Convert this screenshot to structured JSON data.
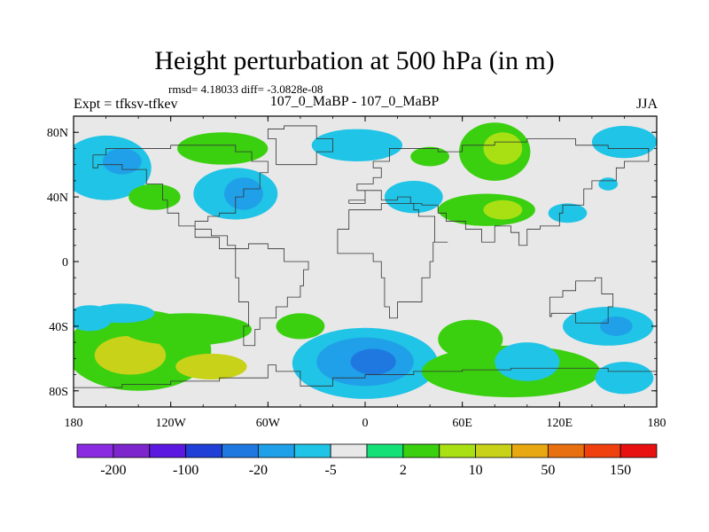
{
  "title": "Height perturbation at 500 hPa (in m)",
  "stats": "rmsd= 4.18033 diff= -3.0828e-08",
  "left_label": "Expt = tfksv-tfkev",
  "center_label": "107_0_MaBP - 107_0_MaBP",
  "right_label": "JJA",
  "map": {
    "lon_range": [
      -180,
      180
    ],
    "lat_range": [
      -90,
      90
    ],
    "lat_ticks": [
      {
        "value": 80,
        "label": "80N"
      },
      {
        "value": 40,
        "label": "40N"
      },
      {
        "value": 0,
        "label": "0"
      },
      {
        "value": -40,
        "label": "40S"
      },
      {
        "value": -80,
        "label": "80S"
      }
    ],
    "lon_ticks": [
      {
        "value": -180,
        "label": "180"
      },
      {
        "value": -120,
        "label": "120W"
      },
      {
        "value": -60,
        "label": "60W"
      },
      {
        "value": 0,
        "label": "0"
      },
      {
        "value": 60,
        "label": "60E"
      },
      {
        "value": 120,
        "label": "120E"
      },
      {
        "value": 180,
        "label": "180"
      }
    ]
  },
  "colorbar": {
    "colors": [
      "#8a2be2",
      "#7d26cd",
      "#5a18e0",
      "#1f3fd6",
      "#1f78e0",
      "#20a0e8",
      "#20c4e6",
      "#e8e8e8",
      "#14e078",
      "#3ad010",
      "#a8e014",
      "#c8d218",
      "#e8a812",
      "#e87010",
      "#f04010",
      "#e81010"
    ],
    "labels": [
      {
        "boundary": 1,
        "text": "-200"
      },
      {
        "boundary": 3,
        "text": "-100"
      },
      {
        "boundary": 5,
        "text": "-20"
      },
      {
        "boundary": 7,
        "text": "-5"
      },
      {
        "boundary": 9,
        "text": "2"
      },
      {
        "boundary": 11,
        "text": "10"
      },
      {
        "boundary": 13,
        "text": "50"
      },
      {
        "boundary": 15,
        "text": "150"
      }
    ]
  },
  "fields": {
    "neutral": "#e8e8e8",
    "blobs": [
      {
        "lon": -160,
        "lat": 58,
        "rlon": 28,
        "rlat": 20,
        "level": 6
      },
      {
        "lon": -150,
        "lat": 62,
        "rlon": 12,
        "rlat": 8,
        "level": 5
      },
      {
        "lon": -130,
        "lat": 40,
        "rlon": 16,
        "rlat": 8,
        "level": 9
      },
      {
        "lon": -88,
        "lat": 70,
        "rlon": 28,
        "rlat": 10,
        "level": 9
      },
      {
        "lon": -80,
        "lat": 42,
        "rlon": 26,
        "rlat": 16,
        "level": 6
      },
      {
        "lon": -75,
        "lat": 42,
        "rlon": 12,
        "rlat": 10,
        "level": 5
      },
      {
        "lon": -5,
        "lat": 72,
        "rlon": 28,
        "rlat": 10,
        "level": 6
      },
      {
        "lon": 30,
        "lat": 40,
        "rlon": 18,
        "rlat": 10,
        "level": 6
      },
      {
        "lon": 40,
        "lat": 65,
        "rlon": 12,
        "rlat": 6,
        "level": 9
      },
      {
        "lon": 80,
        "lat": 68,
        "rlon": 22,
        "rlat": 18,
        "level": 9
      },
      {
        "lon": 85,
        "lat": 70,
        "rlon": 12,
        "rlat": 10,
        "level": 10
      },
      {
        "lon": 75,
        "lat": 32,
        "rlon": 30,
        "rlat": 10,
        "level": 9
      },
      {
        "lon": 85,
        "lat": 32,
        "rlon": 12,
        "rlat": 6,
        "level": 10
      },
      {
        "lon": 125,
        "lat": 30,
        "rlon": 12,
        "rlat": 6,
        "level": 6
      },
      {
        "lon": 160,
        "lat": 74,
        "rlon": 20,
        "rlat": 10,
        "level": 6
      },
      {
        "lon": 150,
        "lat": 48,
        "rlon": 6,
        "rlat": 4,
        "level": 6
      },
      {
        "lon": -140,
        "lat": -55,
        "rlon": 45,
        "rlat": 25,
        "level": 9
      },
      {
        "lon": -145,
        "lat": -58,
        "rlon": 22,
        "rlat": 12,
        "level": 11
      },
      {
        "lon": -95,
        "lat": -65,
        "rlon": 22,
        "rlat": 8,
        "level": 11
      },
      {
        "lon": -110,
        "lat": -42,
        "rlon": 40,
        "rlat": 10,
        "level": 9
      },
      {
        "lon": -170,
        "lat": -35,
        "rlon": 14,
        "rlat": 8,
        "level": 6
      },
      {
        "lon": 0,
        "lat": -63,
        "rlon": 45,
        "rlat": 22,
        "level": 6
      },
      {
        "lon": 0,
        "lat": -62,
        "rlon": 30,
        "rlat": 15,
        "level": 5
      },
      {
        "lon": 5,
        "lat": -62,
        "rlon": 14,
        "rlat": 8,
        "level": 4
      },
      {
        "lon": 65,
        "lat": -48,
        "rlon": 20,
        "rlat": 12,
        "level": 9
      },
      {
        "lon": 90,
        "lat": -68,
        "rlon": 55,
        "rlat": 16,
        "level": 9
      },
      {
        "lon": 100,
        "lat": -62,
        "rlon": 20,
        "rlat": 12,
        "level": 6
      },
      {
        "lon": 150,
        "lat": -40,
        "rlon": 28,
        "rlat": 12,
        "level": 6
      },
      {
        "lon": 155,
        "lat": -40,
        "rlon": 10,
        "rlat": 6,
        "level": 5
      },
      {
        "lon": 160,
        "lat": -72,
        "rlon": 18,
        "rlat": 10,
        "level": 6
      },
      {
        "lon": -40,
        "lat": -40,
        "rlon": 15,
        "rlat": 8,
        "level": 9
      },
      {
        "lon": -150,
        "lat": -32,
        "rlon": 20,
        "rlat": 6,
        "level": 6
      }
    ]
  }
}
